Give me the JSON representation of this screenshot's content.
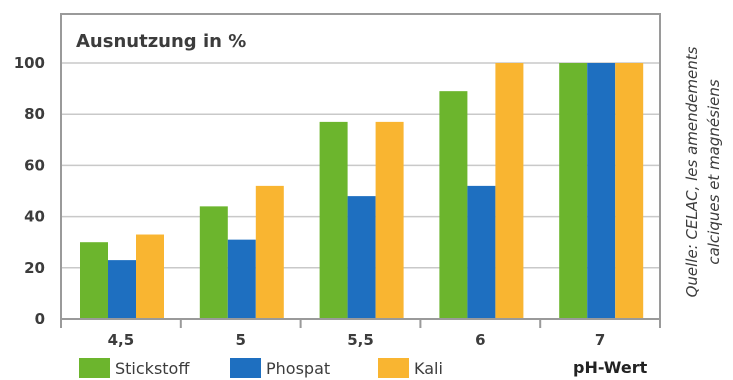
{
  "chart_data": {
    "type": "bar",
    "title": "Ausnutzung in %",
    "xlabel": "pH-Wert",
    "ylabel": "",
    "categories": [
      "4,5",
      "5",
      "5,5",
      "6",
      "7"
    ],
    "series": [
      {
        "name": "Stickstoff",
        "values": [
          30,
          44,
          77,
          89,
          100
        ],
        "color": "#6cb52d"
      },
      {
        "name": "Phospat",
        "values": [
          23,
          31,
          48,
          52,
          100
        ],
        "color": "#1e6fc0"
      },
      {
        "name": "Kali",
        "values": [
          33,
          52,
          77,
          100,
          100
        ],
        "color": "#f9b531"
      }
    ],
    "ylim": [
      0,
      100
    ],
    "yticks": [
      0,
      20,
      40,
      60,
      80,
      100
    ],
    "grid": true,
    "legend_position": "bottom-left",
    "source_lines": [
      "Quelle: CELAC, les amendements",
      "calciques et magnésiens"
    ]
  }
}
